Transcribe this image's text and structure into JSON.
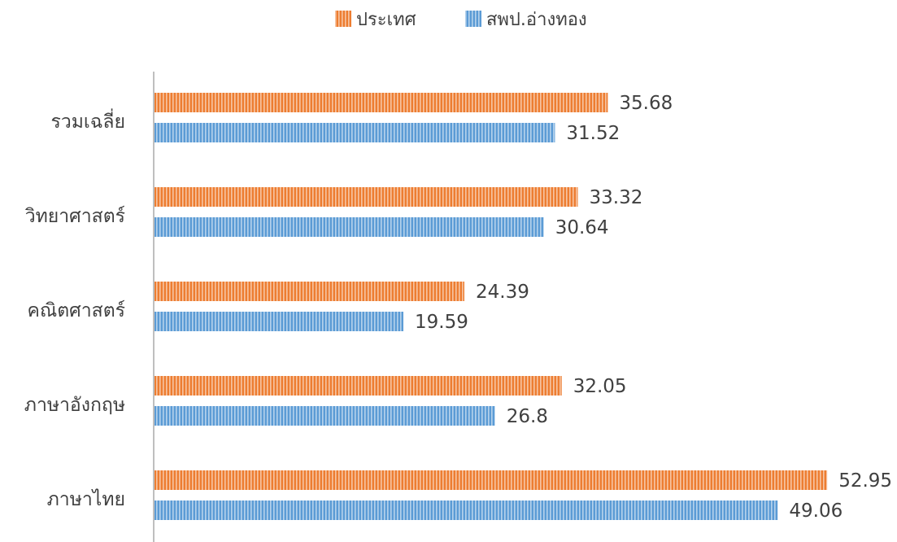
{
  "chart_data": {
    "type": "bar",
    "orientation": "horizontal",
    "categories": [
      "รวมเฉลี่ย",
      "วิทยาศาสตร์",
      "คณิตศาสตร์",
      "ภาษาอังกฤษ",
      "ภาษาไทย"
    ],
    "series": [
      {
        "name": "ประเทศ",
        "color": "#ED7D31",
        "pattern": "vertical-stripes",
        "values": [
          35.68,
          33.32,
          24.39,
          32.05,
          52.95
        ]
      },
      {
        "name": "สพป.อ่างทอง",
        "color": "#5B9BD5",
        "pattern": "vertical-stripes",
        "values": [
          31.52,
          30.64,
          19.59,
          26.8,
          49.06
        ]
      }
    ],
    "xlim": [
      0,
      53
    ],
    "grid": false,
    "legend": "top-center",
    "data_labels": true,
    "axis_color": "#bfbfbf",
    "text_color": "#404040"
  }
}
